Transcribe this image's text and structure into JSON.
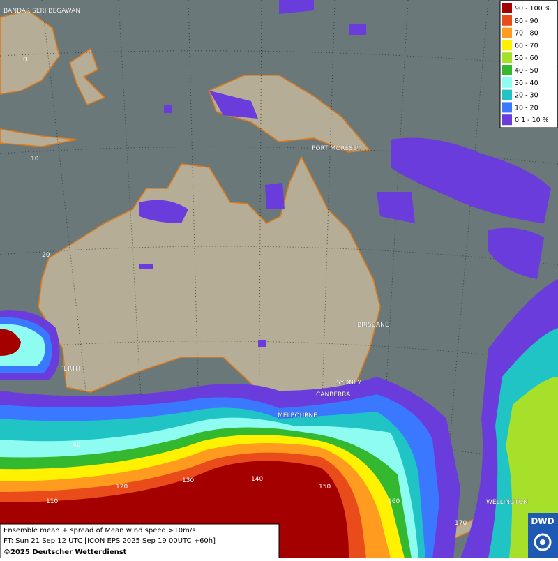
{
  "map": {
    "cities": [
      "BANDAR SERI BEGAWAN",
      "PORT MORESBY",
      "BRISBANE",
      "PERTH",
      "SYDNEY",
      "CANBERRA",
      "MELBOURNE",
      "WELLINGTON"
    ],
    "latitude_labels": [
      "0",
      "10",
      "20",
      "40"
    ],
    "longitude_labels": [
      "110",
      "120",
      "130",
      "140",
      "150",
      "160",
      "170"
    ],
    "legend": [
      {
        "label": "90 - 100 %",
        "color": "#a50000"
      },
      {
        "label": "80 - 90",
        "color": "#ea4b1a"
      },
      {
        "label": "70 - 80",
        "color": "#ff9c1f"
      },
      {
        "label": "60 - 70",
        "color": "#fff200"
      },
      {
        "label": "50 - 60",
        "color": "#a6e02a"
      },
      {
        "label": "40 - 50",
        "color": "#33b830"
      },
      {
        "label": "30 - 40",
        "color": "#8ffcf2"
      },
      {
        "label": "20 - 30",
        "color": "#20c4c4"
      },
      {
        "label": "10 - 20",
        "color": "#3a78ff"
      },
      {
        "label": "0.1 - 10 %",
        "color": "#6a3cdc"
      }
    ],
    "caption": [
      "Ensemble mean + spread of Mean wind speed >10m/s",
      "FT: Sun 21 Sep 12 UTC [ICON EPS 2025 Sep 19 00UTC +60h]",
      "©2025 Deutscher Wetterdienst"
    ],
    "logo": "DWD"
  }
}
